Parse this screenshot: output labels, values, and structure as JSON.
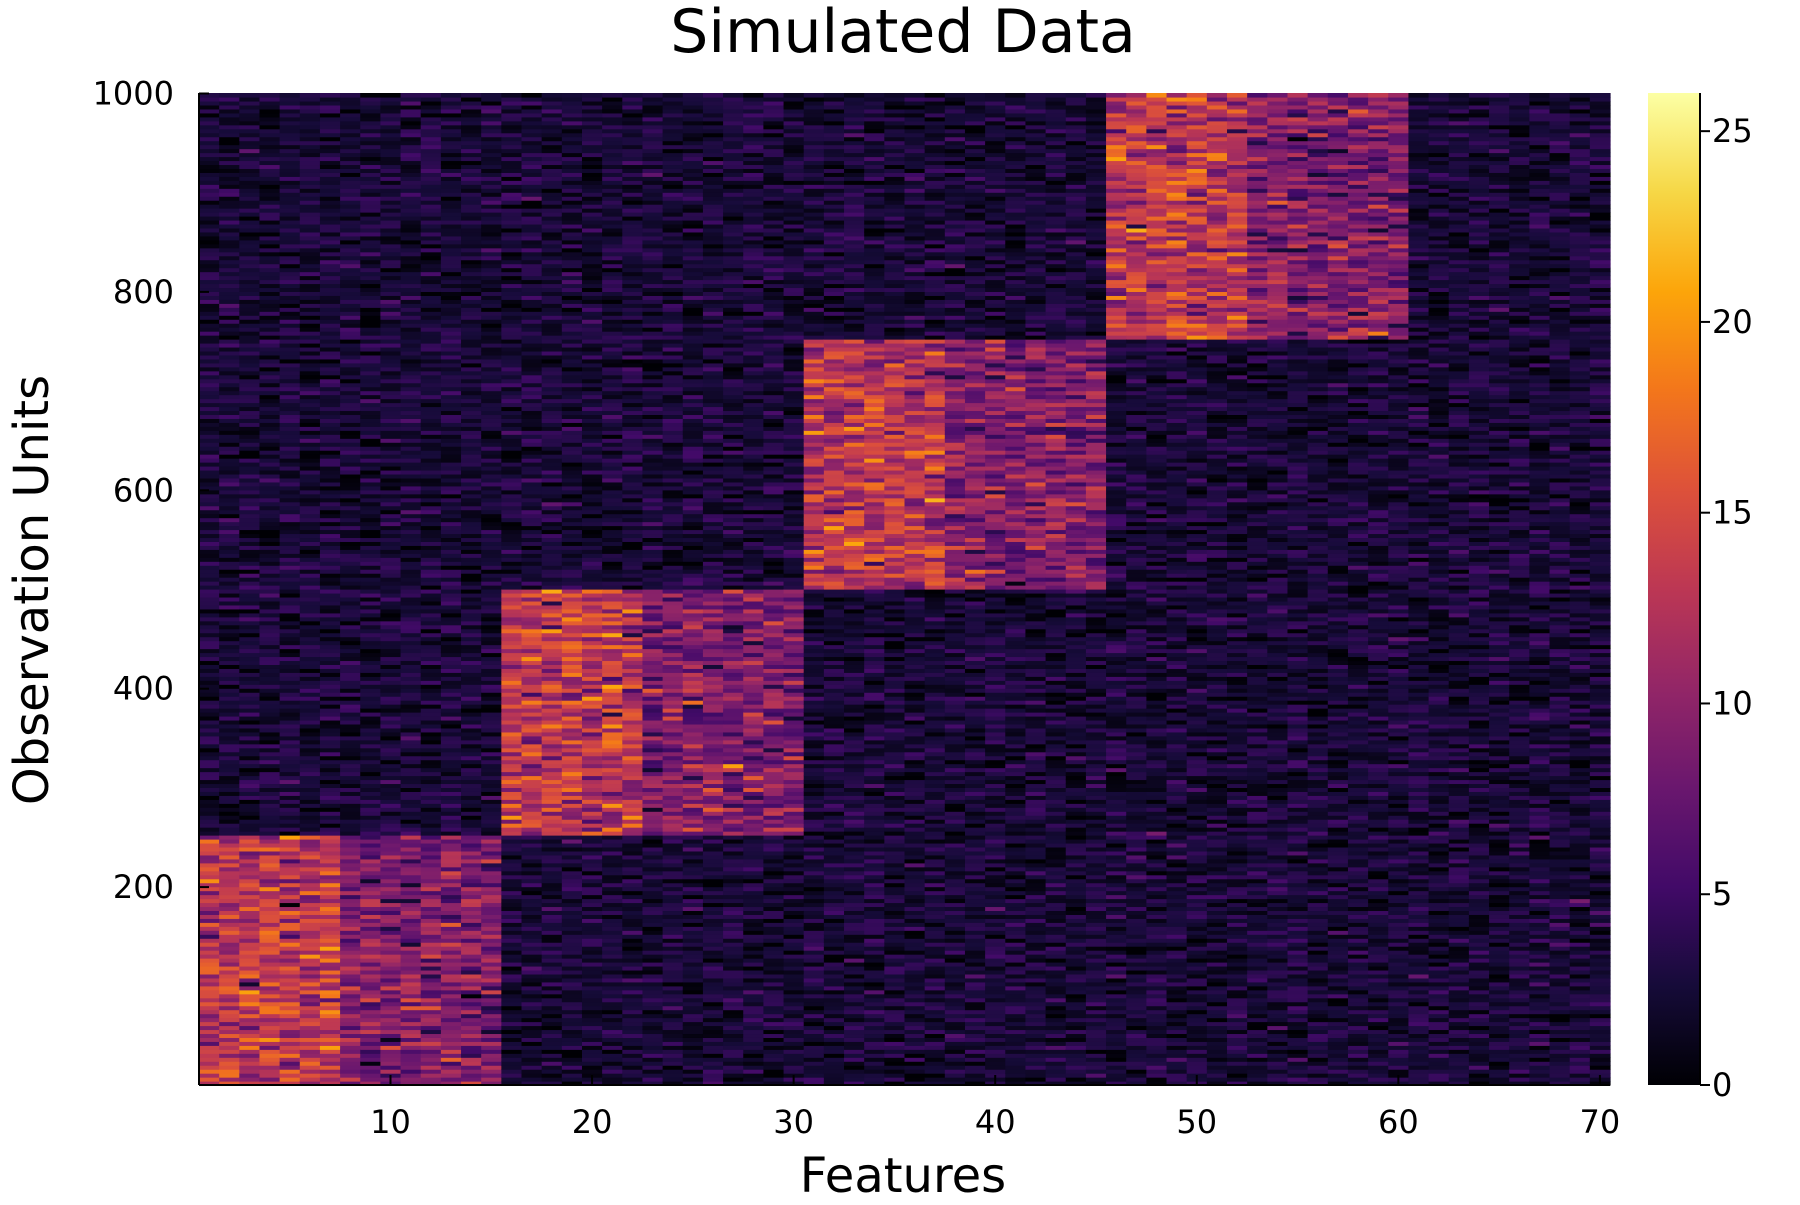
{
  "chart_data": {
    "type": "heatmap",
    "title": "Simulated Data",
    "xlabel": "Features",
    "ylabel": "Observation Units",
    "x_range": [
      1,
      70
    ],
    "y_range": [
      1,
      1000
    ],
    "x_ticks": [
      10,
      20,
      30,
      40,
      50,
      60,
      70
    ],
    "y_ticks": [
      200,
      400,
      600,
      800,
      1000
    ],
    "colorbar": {
      "colormap": "inferno",
      "range": [
        0,
        26
      ],
      "ticks": [
        0,
        5,
        10,
        15,
        20,
        25
      ]
    },
    "background_mean": 2.5,
    "blocks": [
      {
        "rows": [
          1,
          250
        ],
        "features": [
          1,
          15
        ],
        "high_features": [
          1,
          7
        ],
        "high_mean": 13,
        "mid_mean": 9
      },
      {
        "rows": [
          251,
          500
        ],
        "features": [
          16,
          30
        ],
        "high_features": [
          16,
          22
        ],
        "high_mean": 13,
        "mid_mean": 9
      },
      {
        "rows": [
          501,
          750
        ],
        "features": [
          31,
          45
        ],
        "high_features": [
          31,
          37
        ],
        "high_mean": 13,
        "mid_mean": 9
      },
      {
        "rows": [
          751,
          1000
        ],
        "features": [
          46,
          60
        ],
        "high_features": [
          46,
          52
        ],
        "high_mean": 13,
        "mid_mean": 9
      }
    ],
    "grid": false,
    "legend": "colorbar-right"
  }
}
